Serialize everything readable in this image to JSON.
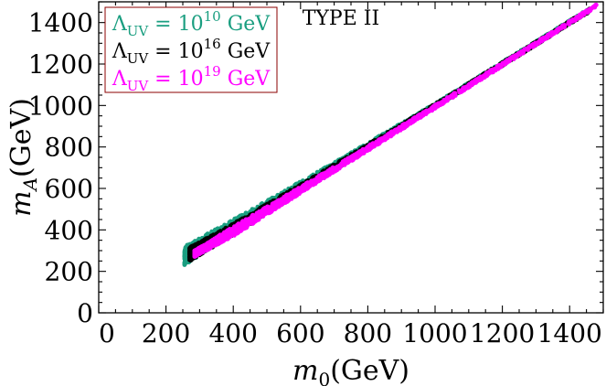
{
  "chart_data": {
    "type": "scatter",
    "annotation": "TYPE II",
    "xlabel": {
      "symbol": "m",
      "sub": "0",
      "unit": "(GeV)"
    },
    "ylabel": {
      "symbol": "m",
      "sub": "A",
      "unit": "(GeV)"
    },
    "xlim": [
      0,
      1500
    ],
    "ylim": [
      0,
      1500
    ],
    "xticks": [
      "0",
      "200",
      "400",
      "600",
      "800",
      "1000",
      "1200",
      "1400"
    ],
    "yticks": [
      "0",
      "200",
      "400",
      "600",
      "800",
      "1000",
      "1200",
      "1400"
    ],
    "legend": {
      "position": "top-left",
      "border_color": "#8b0000",
      "entries": [
        {
          "lhs": "Λ",
          "lhs_sub": "UV",
          "eq": " =  10",
          "exp": "10",
          "unit": " GeV",
          "color": "#1a9e80"
        },
        {
          "lhs": "Λ",
          "lhs_sub": "UV",
          "eq": " =  10",
          "exp": "16",
          "unit": " GeV",
          "color": "#000000"
        },
        {
          "lhs": "Λ",
          "lhs_sub": "UV",
          "eq": " =  10",
          "exp": "19",
          "unit": " GeV",
          "color": "#ff00ff"
        }
      ]
    },
    "series": [
      {
        "color": "#1a9e80",
        "x_range": [
          255,
          1460
        ],
        "band": [
          [
            255,
            230,
            320
          ],
          [
            400,
            385,
            450
          ],
          [
            700,
            690,
            725
          ],
          [
            1000,
            992,
            1010
          ],
          [
            1460,
            1455,
            1470
          ]
        ]
      },
      {
        "color": "#000000",
        "x_range": [
          270,
          1460
        ],
        "band": [
          [
            270,
            250,
            315
          ],
          [
            400,
            375,
            430
          ],
          [
            700,
            685,
            715
          ],
          [
            1000,
            990,
            1008
          ],
          [
            1460,
            1452,
            1468
          ]
        ]
      },
      {
        "color": "#ff00ff",
        "x_range": [
          285,
          1480
        ],
        "band": [
          [
            285,
            270,
            300
          ],
          [
            400,
            370,
            415
          ],
          [
            700,
            680,
            705
          ],
          [
            1000,
            985,
            1002
          ],
          [
            1480,
            1475,
            1488
          ]
        ]
      }
    ]
  }
}
